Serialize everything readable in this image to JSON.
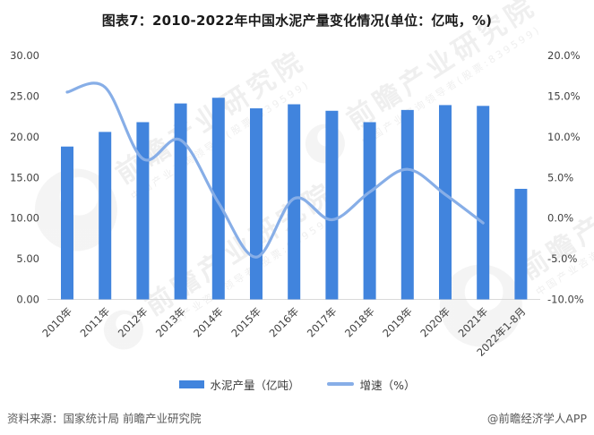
{
  "title": "图表7：2010-2022年中国水泥产量变化情况(单位：亿吨，%)",
  "chart_data": {
    "type": "bar+line combo",
    "categories": [
      "2010年",
      "2011年",
      "2012年",
      "2013年",
      "2014年",
      "2015年",
      "2016年",
      "2017年",
      "2018年",
      "2019年",
      "2020年",
      "2021年",
      "2022年1-8月"
    ],
    "series": [
      {
        "name": "水泥产量（亿吨）",
        "type": "bar",
        "axis": "left",
        "color": "#4184dd",
        "values": [
          18.8,
          20.6,
          21.8,
          24.1,
          24.8,
          23.5,
          24.0,
          23.2,
          21.8,
          23.3,
          23.9,
          23.8,
          13.6
        ]
      },
      {
        "name": "增速（%）",
        "type": "line",
        "axis": "right",
        "color": "#87aee7",
        "values": [
          15.5,
          16.1,
          7.3,
          9.6,
          1.9,
          -4.8,
          2.4,
          -0.2,
          3.2,
          6.0,
          2.9,
          -0.6
        ],
        "note": "line covers 2010年-2021年 only"
      }
    ],
    "left_axis": {
      "min": 0,
      "max": 30,
      "step": 5,
      "tick_labels": [
        "30.00",
        "25.00",
        "20.00",
        "15.00",
        "10.00",
        "5.00",
        "0.00"
      ]
    },
    "right_axis": {
      "min": -10,
      "max": 20,
      "step": 5,
      "tick_labels": [
        "20.0%",
        "15.0%",
        "10.0%",
        "5.0%",
        "0.0%",
        "-5.0%",
        "-10.0%"
      ]
    },
    "grid": "off",
    "legend_position": "bottom-center",
    "axis_line_color": "#d9d9d9",
    "tick_text_color": "#404040"
  },
  "legend": [
    {
      "label": "水泥产量（亿吨）",
      "swatch": "bar"
    },
    {
      "label": "增速（%）",
      "swatch": "line"
    }
  ],
  "footer": {
    "source": "资料来源：国家统计局 前瞻产业研究院",
    "credit": "@前瞻经济学人APP"
  },
  "watermark": {
    "brand": "前瞻产业研究院",
    "tagline": "中国产业咨询领导者(股票:839599)"
  }
}
